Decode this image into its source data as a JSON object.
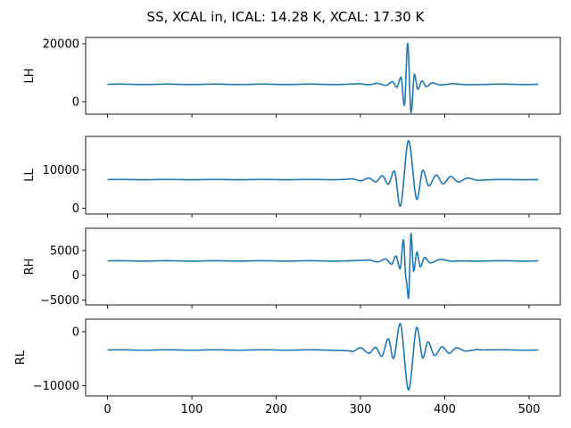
{
  "title": "SS, XCAL in, ICAL: 14.28 K, XCAL: 17.30 K",
  "line_color": "#1f77b4",
  "chart_data": [
    {
      "type": "line",
      "ylabel": "LH",
      "xlim": [
        -26,
        537
      ],
      "ylim": [
        -4300,
        22200
      ],
      "yticks": [
        0,
        20000
      ],
      "xticks": [
        0,
        100,
        200,
        300,
        400,
        500
      ],
      "show_x_tick_labels": false,
      "grid": false,
      "baseline": 6000,
      "x_range": [
        0,
        511
      ],
      "features": [
        {
          "x": 300,
          "y": 6150
        },
        {
          "x": 310,
          "y": 5850
        },
        {
          "x": 320,
          "y": 6350
        },
        {
          "x": 330,
          "y": 5650
        },
        {
          "x": 338,
          "y": 6900
        },
        {
          "x": 343,
          "y": 5000
        },
        {
          "x": 348,
          "y": 8500
        },
        {
          "x": 352,
          "y": -1300
        },
        {
          "x": 356,
          "y": 20200
        },
        {
          "x": 360,
          "y": -3800
        },
        {
          "x": 364,
          "y": 9500
        },
        {
          "x": 368,
          "y": 4300
        },
        {
          "x": 373,
          "y": 7200
        },
        {
          "x": 378,
          "y": 5200
        },
        {
          "x": 385,
          "y": 6500
        },
        {
          "x": 395,
          "y": 5800
        },
        {
          "x": 410,
          "y": 6200
        },
        {
          "x": 425,
          "y": 5900
        }
      ]
    },
    {
      "type": "line",
      "ylabel": "LL",
      "xlim": [
        -26,
        537
      ],
      "ylim": [
        -1500,
        18800
      ],
      "yticks": [
        0,
        10000
      ],
      "xticks": [
        0,
        100,
        200,
        300,
        400,
        500
      ],
      "show_x_tick_labels": false,
      "grid": false,
      "baseline": 7500,
      "x_range": [
        0,
        511
      ],
      "features": [
        {
          "x": 290,
          "y": 7700
        },
        {
          "x": 300,
          "y": 7200
        },
        {
          "x": 310,
          "y": 7900
        },
        {
          "x": 318,
          "y": 6900
        },
        {
          "x": 326,
          "y": 8500
        },
        {
          "x": 333,
          "y": 6300
        },
        {
          "x": 340,
          "y": 9800
        },
        {
          "x": 347,
          "y": 500
        },
        {
          "x": 357,
          "y": 17700
        },
        {
          "x": 367,
          "y": 2300
        },
        {
          "x": 374,
          "y": 10000
        },
        {
          "x": 381,
          "y": 5900
        },
        {
          "x": 390,
          "y": 8700
        },
        {
          "x": 398,
          "y": 6400
        },
        {
          "x": 407,
          "y": 8300
        },
        {
          "x": 416,
          "y": 6900
        },
        {
          "x": 427,
          "y": 7900
        },
        {
          "x": 440,
          "y": 7300
        }
      ]
    },
    {
      "type": "line",
      "ylabel": "RH",
      "xlim": [
        -26,
        537
      ],
      "ylim": [
        -6000,
        9500
      ],
      "yticks": [
        -5000,
        0,
        5000
      ],
      "xticks": [
        0,
        100,
        200,
        300,
        400,
        500
      ],
      "show_x_tick_labels": false,
      "grid": false,
      "baseline": 2900,
      "x_range": [
        0,
        511
      ],
      "features": [
        {
          "x": 310,
          "y": 3100
        },
        {
          "x": 320,
          "y": 2700
        },
        {
          "x": 330,
          "y": 3300
        },
        {
          "x": 337,
          "y": 2200
        },
        {
          "x": 342,
          "y": 3900
        },
        {
          "x": 347,
          "y": 1300
        },
        {
          "x": 351,
          "y": 7200
        },
        {
          "x": 354,
          "y": -800
        },
        {
          "x": 357,
          "y": -4700
        },
        {
          "x": 360,
          "y": 8500
        },
        {
          "x": 363,
          "y": 800
        },
        {
          "x": 367,
          "y": 4700
        },
        {
          "x": 371,
          "y": 1700
        },
        {
          "x": 376,
          "y": 3600
        },
        {
          "x": 383,
          "y": 2500
        },
        {
          "x": 395,
          "y": 3200
        },
        {
          "x": 410,
          "y": 2800
        }
      ]
    },
    {
      "type": "line",
      "ylabel": "RL",
      "xlim": [
        -26,
        537
      ],
      "ylim": [
        -11900,
        2300
      ],
      "yticks": [
        -10000,
        0
      ],
      "xticks": [
        0,
        100,
        200,
        300,
        400,
        500
      ],
      "show_x_tick_labels": true,
      "grid": false,
      "baseline": -3400,
      "x_range": [
        0,
        511
      ],
      "features": [
        {
          "x": 290,
          "y": -3700
        },
        {
          "x": 300,
          "y": -3000
        },
        {
          "x": 310,
          "y": -4000
        },
        {
          "x": 318,
          "y": -2900
        },
        {
          "x": 325,
          "y": -4600
        },
        {
          "x": 333,
          "y": -1300
        },
        {
          "x": 339,
          "y": -5000
        },
        {
          "x": 347,
          "y": 1500
        },
        {
          "x": 357,
          "y": -10800
        },
        {
          "x": 367,
          "y": 800
        },
        {
          "x": 374,
          "y": -4900
        },
        {
          "x": 380,
          "y": -1900
        },
        {
          "x": 388,
          "y": -4400
        },
        {
          "x": 397,
          "y": -2800
        },
        {
          "x": 405,
          "y": -4000
        },
        {
          "x": 414,
          "y": -3000
        },
        {
          "x": 425,
          "y": -3600
        },
        {
          "x": 440,
          "y": -3300
        }
      ]
    }
  ]
}
